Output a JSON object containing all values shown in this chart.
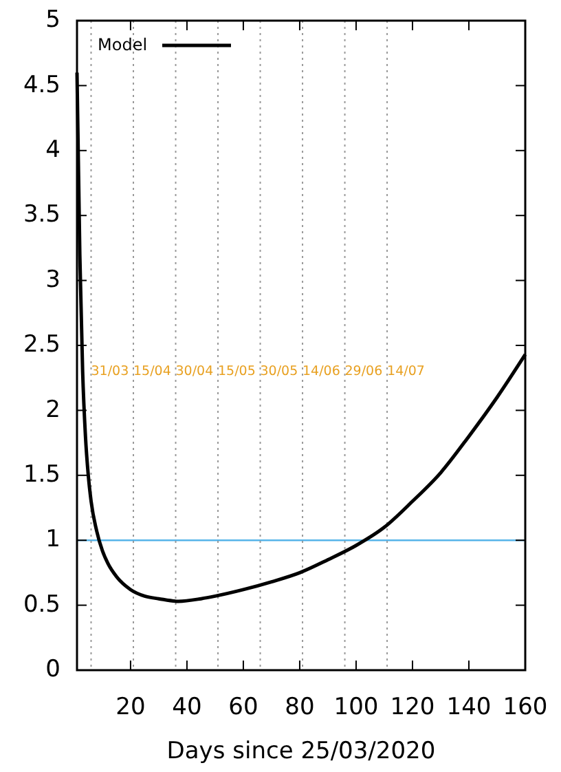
{
  "chart_data": {
    "type": "line",
    "xlabel": "Days since 25/03/2020",
    "x": [
      1,
      2,
      3,
      4,
      5,
      6,
      8,
      10,
      12,
      15,
      20,
      25,
      30,
      37,
      45,
      50,
      60,
      70,
      80,
      90,
      100,
      110,
      120,
      130,
      140,
      150,
      160
    ],
    "series": [
      {
        "name": "Model",
        "color": "#000000",
        "values": [
          4.6,
          3.2,
          2.3,
          1.8,
          1.5,
          1.3,
          1.07,
          0.92,
          0.82,
          0.72,
          0.62,
          0.57,
          0.55,
          0.53,
          0.55,
          0.57,
          0.62,
          0.68,
          0.75,
          0.85,
          0.96,
          1.1,
          1.3,
          1.52,
          1.8,
          2.1,
          2.43
        ]
      }
    ],
    "xlim": [
      1,
      160
    ],
    "xticks": [
      20,
      40,
      60,
      80,
      100,
      120,
      140,
      160
    ],
    "ylim": [
      0,
      5
    ],
    "yticks": [
      0,
      0.5,
      1,
      1.5,
      2,
      2.5,
      3,
      3.5,
      4,
      4.5,
      5
    ],
    "ref_lines": [
      {
        "axis": "y",
        "value": 1,
        "color": "#56b4e9",
        "line_style": "solid"
      },
      {
        "axis": "x",
        "value": 6,
        "color": "#999999",
        "line_style": "dotted"
      },
      {
        "axis": "x",
        "value": 21,
        "color": "#999999",
        "line_style": "dotted"
      },
      {
        "axis": "x",
        "value": 36,
        "color": "#999999",
        "line_style": "dotted"
      },
      {
        "axis": "x",
        "value": 51,
        "color": "#999999",
        "line_style": "dotted"
      },
      {
        "axis": "x",
        "value": 66,
        "color": "#999999",
        "line_style": "dotted"
      },
      {
        "axis": "x",
        "value": 81,
        "color": "#999999",
        "line_style": "dotted"
      },
      {
        "axis": "x",
        "value": 96,
        "color": "#999999",
        "line_style": "dotted"
      },
      {
        "axis": "x",
        "value": 111,
        "color": "#999999",
        "line_style": "dotted"
      }
    ],
    "annotations": [
      {
        "text": "31/03",
        "x": 6,
        "y": 2.3
      },
      {
        "text": "15/04",
        "x": 21,
        "y": 2.3
      },
      {
        "text": "30/04",
        "x": 36,
        "y": 2.3
      },
      {
        "text": "15/05",
        "x": 51,
        "y": 2.3
      },
      {
        "text": "30/05",
        "x": 66,
        "y": 2.3
      },
      {
        "text": "14/06",
        "x": 81,
        "y": 2.3
      },
      {
        "text": "29/06",
        "x": 96,
        "y": 2.3
      },
      {
        "text": "14/07",
        "x": 111,
        "y": 2.3
      }
    ],
    "legend": "top left",
    "grid": false,
    "marker": "none",
    "line_style": "solid"
  }
}
